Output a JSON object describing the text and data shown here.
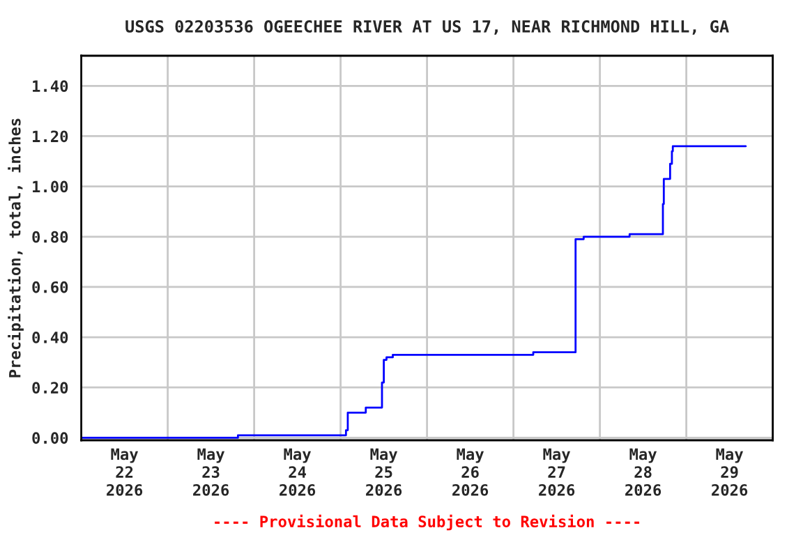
{
  "chart_data": {
    "type": "step",
    "title": "USGS 02203536 OGEECHEE RIVER AT US 17, NEAR RICHMOND HILL, GA",
    "ylabel": "Precipitation, total, inches",
    "annotations": [
      "---- Provisional Data Subject to Revision ----"
    ],
    "series": [
      {
        "color": "#0000ff",
        "x": [
          "2026-05-22T00:00",
          "2026-05-23T19:30",
          "2026-05-25T01:30",
          "2026-05-25T02:00",
          "2026-05-25T07:00",
          "2026-05-25T11:30",
          "2026-05-25T12:00",
          "2026-05-25T12:45",
          "2026-05-25T14:30",
          "2026-05-27T05:30",
          "2026-05-27T17:15",
          "2026-05-27T19:30",
          "2026-05-28T08:15",
          "2026-05-28T17:30",
          "2026-05-28T17:45",
          "2026-05-28T19:30",
          "2026-05-28T20:00",
          "2026-05-28T20:15",
          "2026-05-29T16:30"
        ],
        "values": [
          0.0,
          0.01,
          0.03,
          0.1,
          0.12,
          0.22,
          0.31,
          0.32,
          0.33,
          0.34,
          0.79,
          0.8,
          0.81,
          0.93,
          1.03,
          1.09,
          1.14,
          1.16,
          1.16
        ]
      }
    ],
    "xlim": [
      "2026-05-22T00:00",
      "2026-05-30T00:00"
    ],
    "xticks": [
      {
        "value": "2026-05-22T00:00",
        "label": null
      },
      {
        "value": "2026-05-22T12:00",
        "label": "May\n22\n2026"
      },
      {
        "value": "2026-05-23T00:00",
        "label": null
      },
      {
        "value": "2026-05-23T12:00",
        "label": "May\n23\n2026"
      },
      {
        "value": "2026-05-24T00:00",
        "label": null
      },
      {
        "value": "2026-05-24T12:00",
        "label": "May\n24\n2026"
      },
      {
        "value": "2026-05-25T00:00",
        "label": null
      },
      {
        "value": "2026-05-25T12:00",
        "label": "May\n25\n2026"
      },
      {
        "value": "2026-05-26T00:00",
        "label": null
      },
      {
        "value": "2026-05-26T12:00",
        "label": "May\n26\n2026"
      },
      {
        "value": "2026-05-27T00:00",
        "label": null
      },
      {
        "value": "2026-05-27T12:00",
        "label": "May\n27\n2026"
      },
      {
        "value": "2026-05-28T00:00",
        "label": null
      },
      {
        "value": "2026-05-28T12:00",
        "label": "May\n28\n2026"
      },
      {
        "value": "2026-05-29T00:00",
        "label": null
      },
      {
        "value": "2026-05-29T12:00",
        "label": "May\n29\n2026"
      },
      {
        "value": "2026-05-30T00:00",
        "label": null
      }
    ],
    "ylim": [
      -0.01,
      1.52
    ],
    "yticks": [
      {
        "value": 0,
        "label": "0.00"
      },
      {
        "value": 0.2,
        "label": "0.20"
      },
      {
        "value": 0.4,
        "label": "0.40"
      },
      {
        "value": 0.6,
        "label": "0.60"
      },
      {
        "value": 0.8,
        "label": "0.80"
      },
      {
        "value": 1.0,
        "label": "1.00"
      },
      {
        "value": 1.2,
        "label": "1.20"
      },
      {
        "value": 1.4,
        "label": "1.40"
      }
    ],
    "grid": true,
    "legend": false
  }
}
